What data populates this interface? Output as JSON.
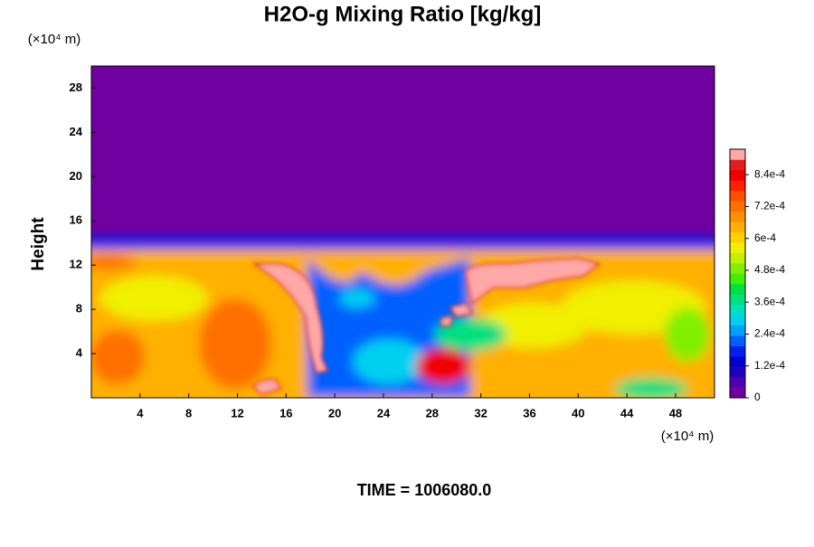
{
  "chart_data": {
    "type": "contour",
    "title": "H2O-g Mixing Ratio [kg/kg]",
    "ylabel": "Height",
    "y_unit": "(×10⁴ m)",
    "x_unit": "(×10⁴ m)",
    "time_label": "TIME = 1006080.0",
    "xlim": [
      0,
      51.2
    ],
    "xticks": [
      4,
      8,
      12,
      16,
      20,
      24,
      28,
      32,
      36,
      40,
      44,
      48
    ],
    "ylim": [
      0,
      30
    ],
    "yticks": [
      4,
      8,
      12,
      16,
      20,
      24,
      28
    ],
    "clim": [
      0,
      0.000936
    ],
    "cticks": [
      0,
      {
        "value": 0.00012,
        "label": "1.2e-4"
      },
      {
        "value": 0.00024,
        "label": "2.4e-4"
      },
      {
        "value": 0.00036,
        "label": "3.6e-4"
      },
      {
        "value": 0.00048,
        "label": "4.8e-4"
      },
      {
        "value": 0.0006,
        "label": "6e-4"
      },
      {
        "value": 0.00072,
        "label": "7.2e-4"
      },
      {
        "value": 0.00084,
        "label": "8.4e-4"
      }
    ],
    "colormap": [
      "#7000a0",
      "#5000b0",
      "#2000c0",
      "#0000d0",
      "#0020f0",
      "#0060ff",
      "#00a0ff",
      "#00d0f0",
      "#00e0c0",
      "#00e080",
      "#00e040",
      "#40f000",
      "#80f000",
      "#c0f000",
      "#f0f000",
      "#ffd000",
      "#ffb000",
      "#ff9000",
      "#ff7000",
      "#ff5000",
      "#ff2000",
      "#f00000",
      "#e02020",
      "#ffa8a8"
    ]
  }
}
